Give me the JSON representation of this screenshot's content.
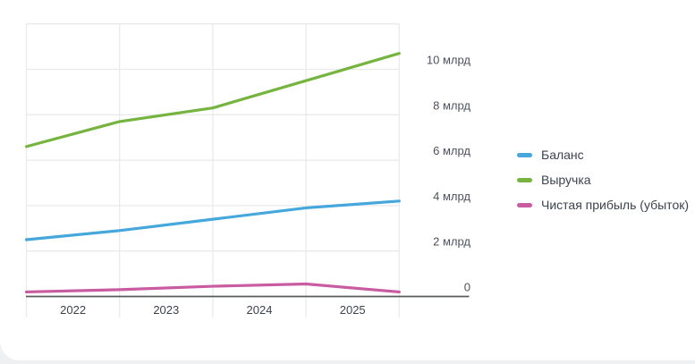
{
  "chart_data": {
    "type": "line",
    "title": "",
    "x_tick_labels": [
      "2022",
      "2023",
      "2024",
      "2025"
    ],
    "y_tick_labels": [
      "0",
      "2 млрд",
      "4 млрд",
      "6 млрд",
      "8 млрд",
      "10 млрд"
    ],
    "y_tick_values": [
      0,
      2,
      4,
      6,
      8,
      10
    ],
    "ylim": [
      0,
      12
    ],
    "grid": true,
    "legend_position": "right",
    "points_per_series": 5,
    "series": [
      {
        "name": "Баланс",
        "color": "#45a7db",
        "values": [
          2.5,
          2.9,
          3.4,
          3.9,
          4.2
        ]
      },
      {
        "name": "Выручка",
        "color": "#76b440",
        "values": [
          6.6,
          7.7,
          8.3,
          9.5,
          10.7
        ]
      },
      {
        "name": "Чистая прибыль (убыток)",
        "color": "#c95ba0",
        "values": [
          0.2,
          0.3,
          0.45,
          0.55,
          0.2
        ]
      }
    ]
  },
  "colors": {
    "gridline": "#e9eaeb",
    "axis_line": "#595b5e",
    "x_tick_text": "#3d434c",
    "y_tick_text": "#4d525b",
    "legend_text": "#3d434c",
    "card_background": "#ffffff",
    "page_background": "#eff0f1"
  }
}
